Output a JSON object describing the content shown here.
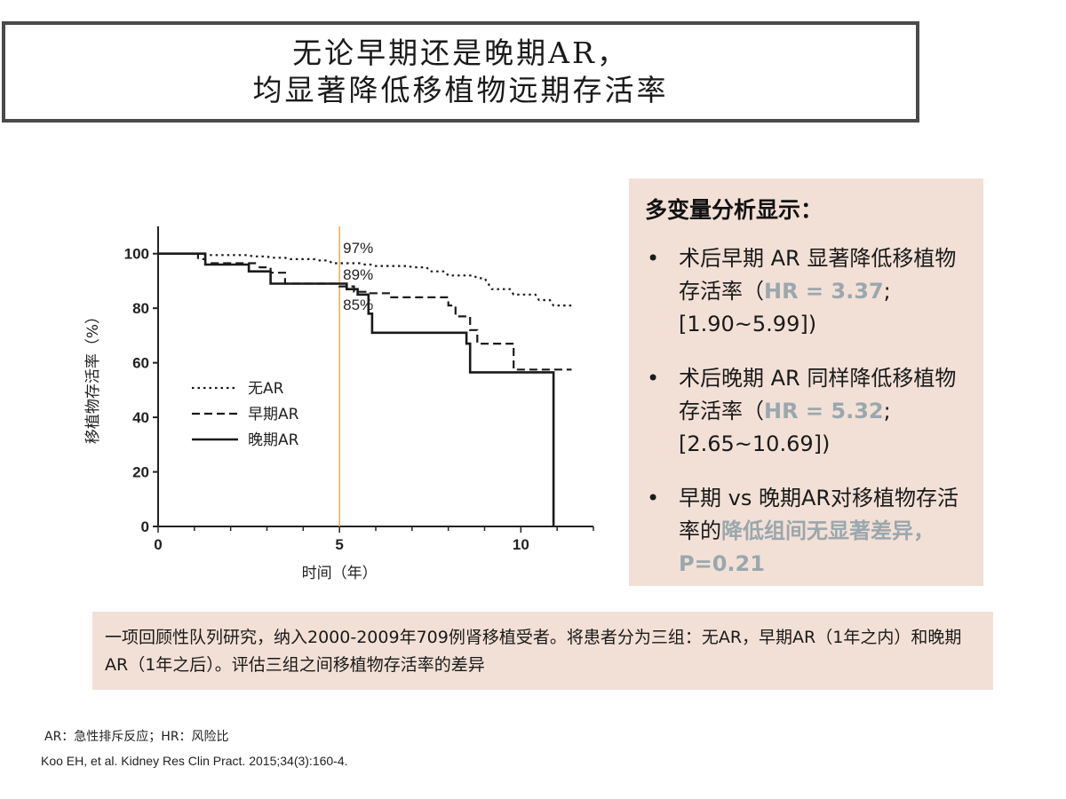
{
  "title": {
    "line1": "无论早期还是晚期AR，",
    "line2": "均显著降低移植物远期存活率"
  },
  "chart_data": {
    "type": "line",
    "xlabel": "时间（年）",
    "ylabel": "移植物存活率（%）",
    "xlim": [
      0,
      12
    ],
    "ylim": [
      0,
      110
    ],
    "x_ticks": [
      0,
      5,
      10
    ],
    "y_ticks": [
      0,
      20,
      40,
      60,
      80,
      100
    ],
    "grid": false,
    "legend_position": "center-left",
    "reference_line": {
      "x": 5,
      "color": "#e8b04a"
    },
    "annotations": [
      "97%",
      "89%",
      "85%"
    ],
    "series": [
      {
        "name": "无AR",
        "style": "dotted",
        "points": [
          [
            0,
            100
          ],
          [
            1.2,
            100
          ],
          [
            1.3,
            99.5
          ],
          [
            2.5,
            99.5
          ],
          [
            2.6,
            99
          ],
          [
            3,
            99
          ],
          [
            3.1,
            98.5
          ],
          [
            3.5,
            98.5
          ],
          [
            3.6,
            98
          ],
          [
            4.3,
            98
          ],
          [
            4.4,
            97.5
          ],
          [
            4.7,
            97.5
          ],
          [
            4.8,
            96.5
          ],
          [
            5.6,
            96.5
          ],
          [
            5.7,
            96
          ],
          [
            5.9,
            96
          ],
          [
            6,
            95.5
          ],
          [
            6.9,
            95.5
          ],
          [
            7,
            95
          ],
          [
            7.4,
            95
          ],
          [
            7.5,
            93.5
          ],
          [
            7.9,
            93.5
          ],
          [
            8,
            92
          ],
          [
            8.7,
            92
          ],
          [
            8.8,
            91
          ],
          [
            9,
            91
          ],
          [
            9.1,
            89
          ],
          [
            9.2,
            87
          ],
          [
            9.7,
            87
          ],
          [
            9.8,
            85
          ],
          [
            10.4,
            85
          ],
          [
            10.5,
            83
          ],
          [
            10.8,
            83
          ],
          [
            10.9,
            81
          ],
          [
            11.4,
            81
          ]
        ]
      },
      {
        "name": "早期AR",
        "style": "dashed",
        "points": [
          [
            0,
            100
          ],
          [
            1.1,
            100
          ],
          [
            1.1,
            98
          ],
          [
            1.3,
            98
          ],
          [
            1.3,
            96.5
          ],
          [
            2.7,
            96.5
          ],
          [
            2.8,
            95
          ],
          [
            3.1,
            95
          ],
          [
            3.1,
            93
          ],
          [
            3.5,
            93
          ],
          [
            3.5,
            89
          ],
          [
            5.0,
            89
          ],
          [
            5.0,
            88
          ],
          [
            5.4,
            88
          ],
          [
            5.4,
            86
          ],
          [
            5.8,
            86
          ],
          [
            5.8,
            85.5
          ],
          [
            6.4,
            85.5
          ],
          [
            6.4,
            84
          ],
          [
            8.0,
            84
          ],
          [
            8.0,
            81
          ],
          [
            8.2,
            81
          ],
          [
            8.2,
            77
          ],
          [
            8.6,
            77
          ],
          [
            8.6,
            72
          ],
          [
            8.8,
            72
          ],
          [
            8.8,
            67
          ],
          [
            9.8,
            67
          ],
          [
            9.8,
            57.5
          ],
          [
            11.4,
            57.5
          ]
        ]
      },
      {
        "name": "晚期AR",
        "style": "solid",
        "points": [
          [
            0,
            100
          ],
          [
            1.3,
            100
          ],
          [
            1.3,
            96
          ],
          [
            2.5,
            96
          ],
          [
            2.5,
            93.5
          ],
          [
            3.1,
            93.5
          ],
          [
            3.1,
            89
          ],
          [
            5.2,
            89
          ],
          [
            5.2,
            87
          ],
          [
            5.5,
            87
          ],
          [
            5.5,
            85
          ],
          [
            5.8,
            85
          ],
          [
            5.8,
            78
          ],
          [
            5.9,
            78
          ],
          [
            5.9,
            71
          ],
          [
            8.5,
            71
          ],
          [
            8.5,
            67
          ],
          [
            8.6,
            67
          ],
          [
            8.6,
            56.5
          ],
          [
            10.9,
            56.5
          ],
          [
            10.9,
            0
          ]
        ]
      }
    ]
  },
  "panel": {
    "title": "多变量分析显示：",
    "bullet": "•",
    "items": [
      {
        "text": "术后早期 AR 显著降低移植物存活率（",
        "highlight": "HR = 3.37",
        "text2": "; [1.90~5.99])"
      },
      {
        "text": "术后晚期 AR 同样降低移植物存活率（",
        "highlight": "HR = 5.32",
        "text2": "; [2.65~10.69])"
      },
      {
        "text": "早期 vs 晚期AR对移植物存活率的",
        "highlight": "降低组间无显著差异，P=0.21",
        "text2": ""
      }
    ]
  },
  "study_note": "一项回顾性队列研究，纳入2000-2009年709例肾移植受者。将患者分为三组：无AR，早期AR（1年之内）和晚期AR（1年之后）。评估三组之间移植物存活率的差异",
  "footnote1": "AR：急性排斥反应；HR：风险比",
  "footnote2": "Koo EH, et al. Kidney Res Clin Pract. 2015;34(3):160-4.",
  "colors": {
    "panel_bg": "#f2e0d6",
    "highlight": "#9aa7ad",
    "ref_line": "#e8b04a"
  }
}
